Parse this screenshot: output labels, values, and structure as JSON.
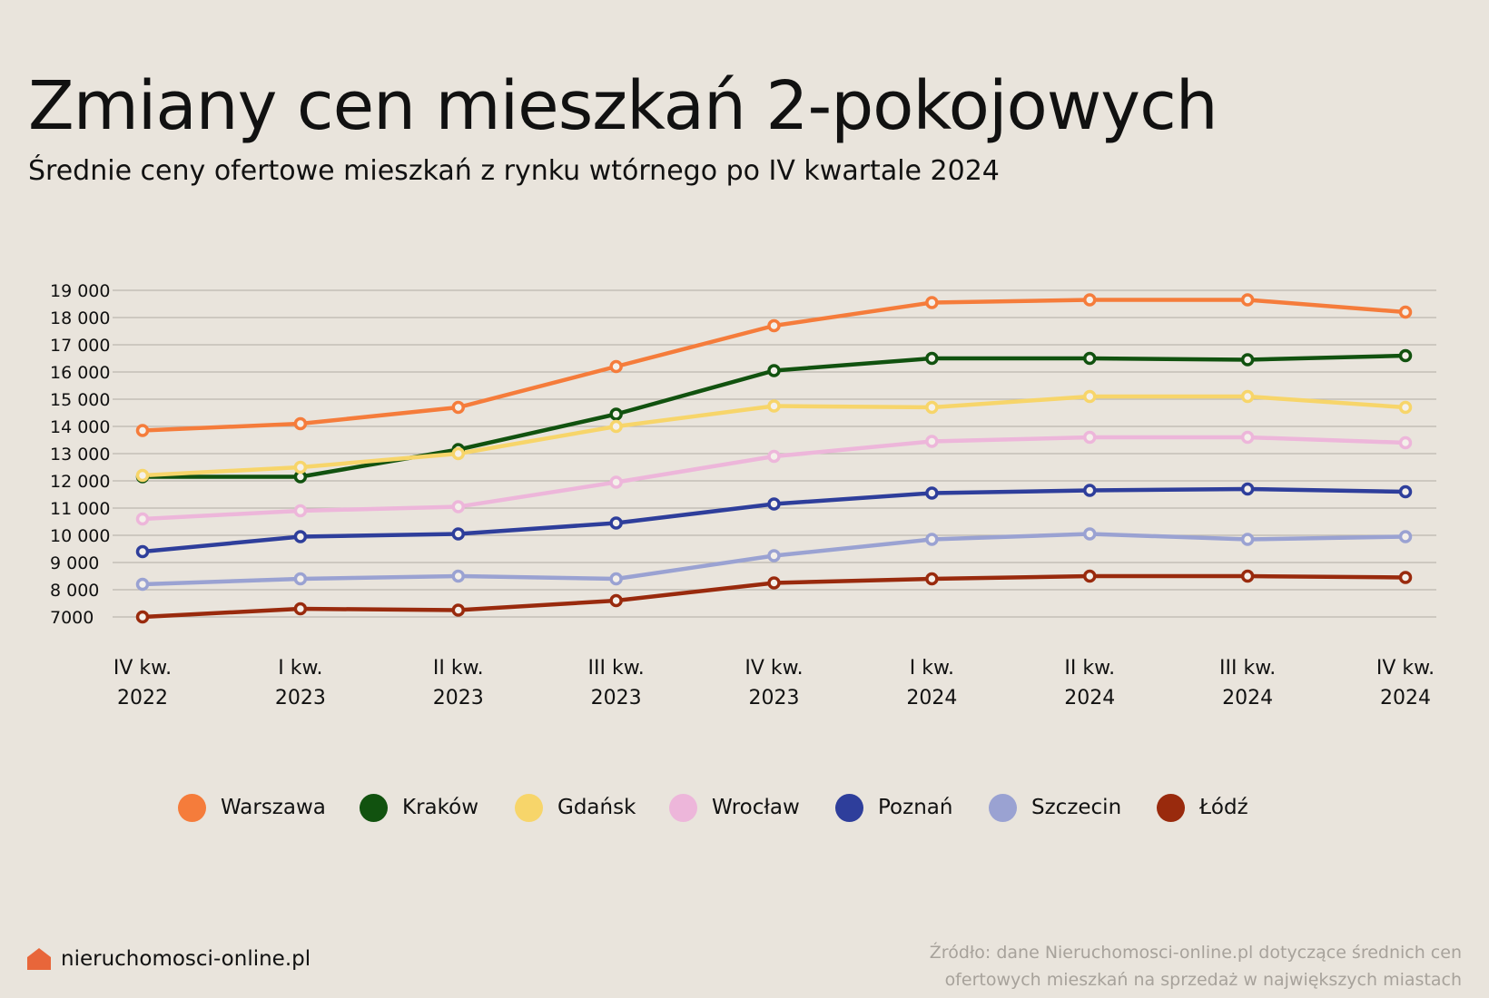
{
  "title": "Zmiany cen mieszkań 2-pokojowych",
  "subtitle": "Średnie ceny ofertowe mieszkań z rynku wtórnego po IV kwartale 2024",
  "brand": {
    "name": "nieruchomosci-online.pl",
    "icon": "house-icon",
    "color": "#e8663a"
  },
  "source": {
    "line1": "Źródło: dane Nieruchomosci-online.pl dotyczące średnich cen",
    "line2": "ofertowych mieszkań na sprzedaż w największych miastach"
  },
  "chart_data": {
    "type": "line",
    "categories": [
      [
        "IV kw.",
        "2022"
      ],
      [
        "I kw.",
        "2023"
      ],
      [
        "II kw.",
        "2023"
      ],
      [
        "III kw.",
        "2023"
      ],
      [
        "IV kw.",
        "2023"
      ],
      [
        "I kw.",
        "2024"
      ],
      [
        "II kw.",
        "2024"
      ],
      [
        "III kw.",
        "2024"
      ],
      [
        "IV kw.",
        "2024"
      ]
    ],
    "ylim": [
      7000,
      19000
    ],
    "yticks": [
      7000,
      8000,
      9000,
      10000,
      11000,
      12000,
      13000,
      14000,
      15000,
      16000,
      17000,
      18000,
      19000
    ],
    "ytick_labels": [
      "7000",
      "8 000",
      "9 000",
      "10 000",
      "11 000",
      "12 000",
      "13 000",
      "14 000",
      "15 000",
      "16 000",
      "17 000",
      "18 000",
      "19 000"
    ],
    "grid": true,
    "legend_position": "bottom",
    "series": [
      {
        "name": "Warszawa",
        "color": "#f57c3b",
        "values": [
          13850,
          14100,
          14700,
          16200,
          17700,
          18550,
          18650,
          18650,
          18200
        ]
      },
      {
        "name": "Kraków",
        "color": "#11520f",
        "values": [
          12150,
          12150,
          13150,
          14450,
          16050,
          16500,
          16500,
          16450,
          16600
        ]
      },
      {
        "name": "Gdańsk",
        "color": "#f7d56a",
        "values": [
          12200,
          12500,
          13000,
          14000,
          14750,
          14700,
          15100,
          15100,
          14700
        ]
      },
      {
        "name": "Wrocław",
        "color": "#edb6da",
        "values": [
          10600,
          10900,
          11050,
          11950,
          12900,
          13450,
          13600,
          13600,
          13400
        ]
      },
      {
        "name": "Poznań",
        "color": "#2e3e9b",
        "values": [
          9400,
          9950,
          10050,
          10450,
          11150,
          11550,
          11650,
          11700,
          11600
        ]
      },
      {
        "name": "Szczecin",
        "color": "#9aa2d2",
        "values": [
          8200,
          8400,
          8500,
          8400,
          9250,
          9850,
          10050,
          9850,
          9950
        ]
      },
      {
        "name": "Łódź",
        "color": "#992a0d",
        "values": [
          7000,
          7300,
          7250,
          7600,
          8250,
          8400,
          8500,
          8500,
          8450
        ]
      }
    ]
  }
}
